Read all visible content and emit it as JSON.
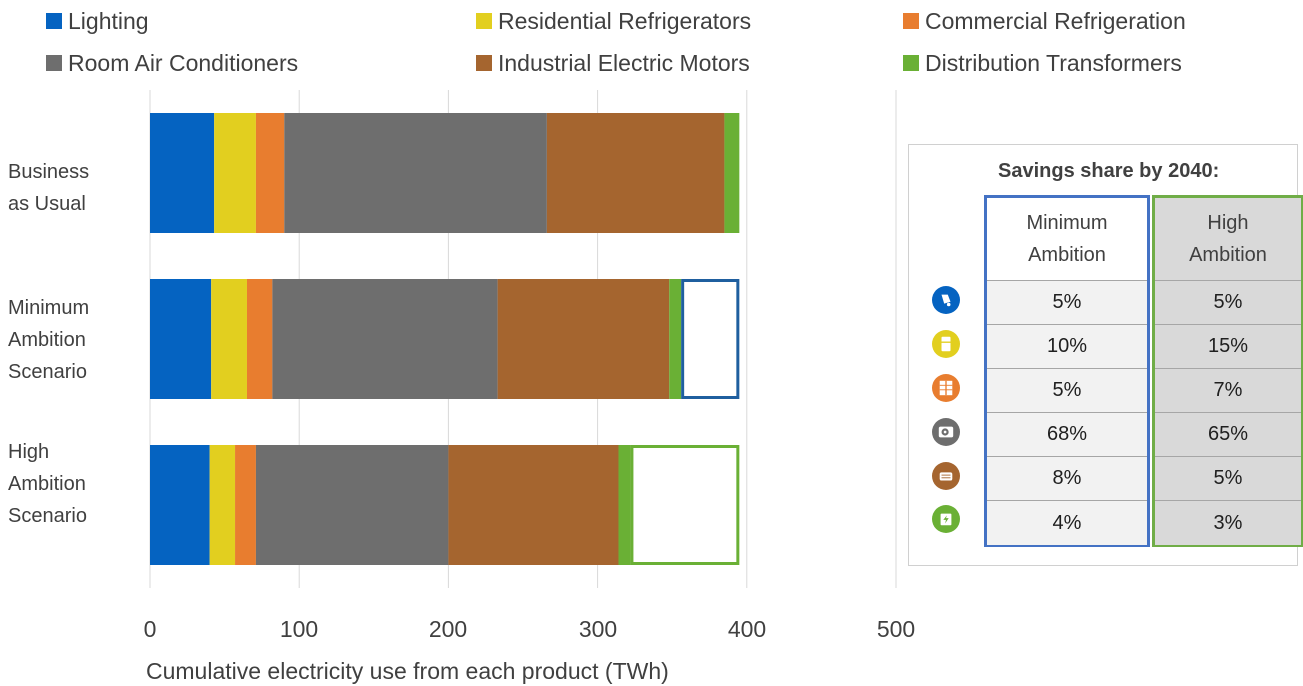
{
  "legend": [
    {
      "name": "Lighting",
      "color": "#0563c1"
    },
    {
      "name": "Residential Refrigerators",
      "color": "#e2cf1f"
    },
    {
      "name": "Commercial Refrigeration",
      "color": "#e87d2f"
    },
    {
      "name": "Room Air Conditioners",
      "color": "#6e6e6e"
    },
    {
      "name": "Industrial Electric Motors",
      "color": "#a5652f"
    },
    {
      "name": "Distribution Transformers",
      "color": "#6ab035"
    }
  ],
  "chart_data": {
    "type": "bar",
    "orientation": "horizontal",
    "stacked": true,
    "categories": [
      "Business as Usual",
      "Minimum Ambition Scenario",
      "High Ambition Scenario"
    ],
    "category_lines": [
      [
        "Business",
        "as Usual"
      ],
      [
        "Minimum",
        "Ambition",
        "Scenario"
      ],
      [
        "High",
        "Ambition",
        "Scenario"
      ]
    ],
    "series": [
      {
        "name": "Lighting",
        "color": "#0563c1",
        "values": [
          43,
          41,
          40
        ]
      },
      {
        "name": "Residential Refrigerators",
        "color": "#e2cf1f",
        "values": [
          28,
          24,
          17
        ]
      },
      {
        "name": "Commercial Refrigeration",
        "color": "#e87d2f",
        "values": [
          19,
          17,
          14
        ]
      },
      {
        "name": "Room Air Conditioners",
        "color": "#6e6e6e",
        "values": [
          176,
          151,
          129
        ]
      },
      {
        "name": "Industrial Electric Motors",
        "color": "#a5652f",
        "values": [
          119,
          115,
          114
        ]
      },
      {
        "name": "Distribution Transformers",
        "color": "#6ab035",
        "values": [
          10,
          8,
          8
        ]
      }
    ],
    "savings_outline": [
      {
        "category": "Minimum Ambition Scenario",
        "from": 356,
        "to": 395,
        "color": "#1f5f9f"
      },
      {
        "category": "High Ambition Scenario",
        "from": 322,
        "to": 395,
        "color": "#6ab035"
      }
    ],
    "xlabel": "Cumulative electricity use from each product (TWh)",
    "xlim": [
      0,
      500
    ],
    "xticks": [
      0,
      100,
      200,
      300,
      400,
      500
    ],
    "grid": true,
    "legend_position": "top"
  },
  "savings_table": {
    "title": "Savings share by 2040:",
    "columns": [
      {
        "label_lines": [
          "Minimum",
          "Ambition"
        ],
        "border_color": "#4472c4",
        "cell_bg": "#f2f2f2",
        "values": [
          "5%",
          "10%",
          "5%",
          "68%",
          "8%",
          "4%"
        ]
      },
      {
        "label_lines": [
          "High",
          "Ambition"
        ],
        "border_color": "#70ad47",
        "cell_bg": "#d9d9d9",
        "values": [
          "5%",
          "15%",
          "7%",
          "65%",
          "5%",
          "3%"
        ]
      }
    ],
    "row_icons": [
      {
        "icon": "lighting-icon",
        "color": "#0563c1"
      },
      {
        "icon": "refrigerator-icon",
        "color": "#e2cf1f"
      },
      {
        "icon": "commercial-refrigeration-icon",
        "color": "#e87d2f"
      },
      {
        "icon": "air-conditioner-icon",
        "color": "#6e6e6e"
      },
      {
        "icon": "motor-icon",
        "color": "#a5652f"
      },
      {
        "icon": "transformer-icon",
        "color": "#6ab035"
      }
    ]
  }
}
